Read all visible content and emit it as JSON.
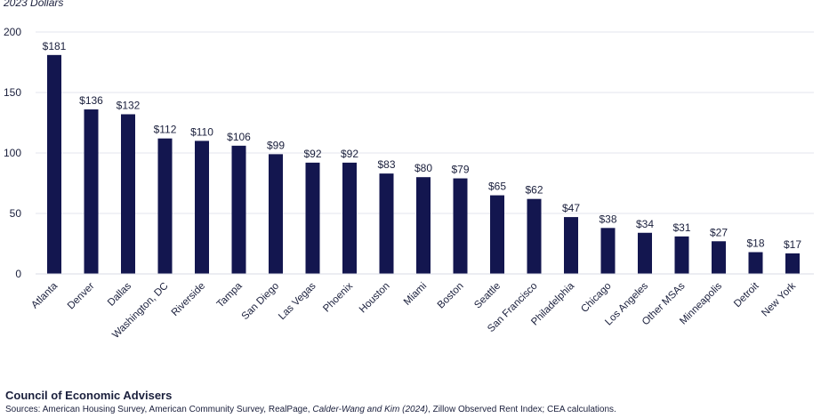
{
  "chart_data": {
    "type": "bar",
    "subtitle": "2023 Dollars",
    "categories": [
      "Atlanta",
      "Denver",
      "Dallas",
      "Washington, DC",
      "Riverside",
      "Tampa",
      "San Diego",
      "Las Vegas",
      "Phoenix",
      "Houston",
      "Miami",
      "Boston",
      "Seattle",
      "San Francisco",
      "Philadelphia",
      "Chicago",
      "Los Angeles",
      "Other MSAs",
      "Minneapolis",
      "Detroit",
      "New York"
    ],
    "values": [
      181,
      136,
      132,
      112,
      110,
      106,
      99,
      92,
      92,
      83,
      80,
      79,
      65,
      62,
      47,
      38,
      34,
      31,
      27,
      18,
      17
    ],
    "value_labels": [
      "$181",
      "$136",
      "$132",
      "$112",
      "$110",
      "$106",
      "$99",
      "$92",
      "$92",
      "$83",
      "$80",
      "$79",
      "$65",
      "$62",
      "$47",
      "$38",
      "$34",
      "$31",
      "$27",
      "$18",
      "$17"
    ],
    "ylim": [
      0,
      200
    ],
    "yticks": [
      0,
      50,
      100,
      150,
      200
    ],
    "grid": true,
    "bar_color": "#13164f"
  },
  "footer": {
    "organization": "Council of Economic Advisers",
    "sources_prefix": "Sources: American Housing Survey, American Community Survey, RealPage, ",
    "sources_italic": "Calder-Wang and Kim (2024)",
    "sources_suffix": ", Zillow Observed Rent Index; CEA calculations."
  }
}
